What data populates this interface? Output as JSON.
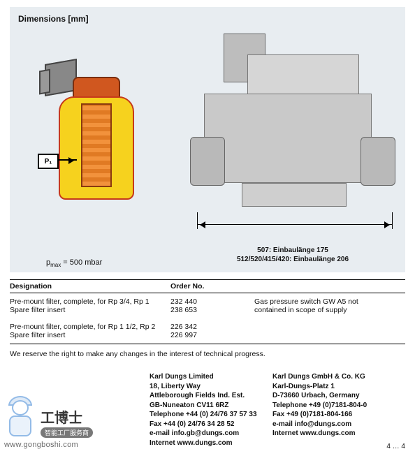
{
  "section_title": "Dimensions [mm]",
  "colors": {
    "panel_bg": "#e8edf1",
    "cutaway_fill": "#f6d21e",
    "cutaway_stroke": "#c63a1a",
    "iso_fill": "#c9c9c9"
  },
  "cross_section": {
    "port_label": "P₁",
    "pmax_label": "p",
    "pmax_sub": "max",
    "pmax_value": " = 500 mbar"
  },
  "iso_dim": {
    "line1": "507: Einbaulänge 175",
    "line2": "512/520/415/420: Einbaulänge 206"
  },
  "table": {
    "headers": {
      "c1": "Designation",
      "c2": "Order No."
    },
    "rows": [
      {
        "c1": "Pre-mount filter, complete, for Rp 3/4, Rp 1",
        "c2": "232 440"
      },
      {
        "c1": "Spare filter insert",
        "c2": "238 653"
      }
    ],
    "rows2": [
      {
        "c1": "Pre-mount filter, complete, for Rp 1 1/2, Rp 2",
        "c2": "226 342"
      },
      {
        "c1": "Spare filter insert",
        "c2": "226 997"
      }
    ],
    "side_note_l1": "Gas pressure switch GW A5 not",
    "side_note_l2": "contained in scope of supply"
  },
  "footnote": "We reserve the right to make any changes in the interest of technical progress.",
  "addr_left": {
    "name": "Karl Dungs Limited",
    "l1": "18, Liberty Way",
    "l2": "Attleborough Fields Ind. Est.",
    "l3": "GB-Nuneaton CV11 6RZ",
    "tel": "Telephone +44 (0) 24/76 37 57 33",
    "fax": "Fax +44 (0) 24/76 34 28 52",
    "mail": "e-mail info.gb@dungs.com",
    "web": "Internet www.dungs.com"
  },
  "addr_right": {
    "name": "Karl Dungs GmbH & Co. KG",
    "l1": "Karl-Dungs-Platz 1",
    "l2": "D-73660 Urbach, Germany",
    "tel": "Telephone +49 (0)7181-804-0",
    "fax": "Fax +49 (0)7181-804-166",
    "mail": "e-mail info@dungs.com",
    "web": "Internet www.dungs.com"
  },
  "page_num": "4 … 4",
  "watermark": {
    "cn": "工博士",
    "tag": "智能工厂服务商",
    "url": "www.gongboshi.com"
  }
}
